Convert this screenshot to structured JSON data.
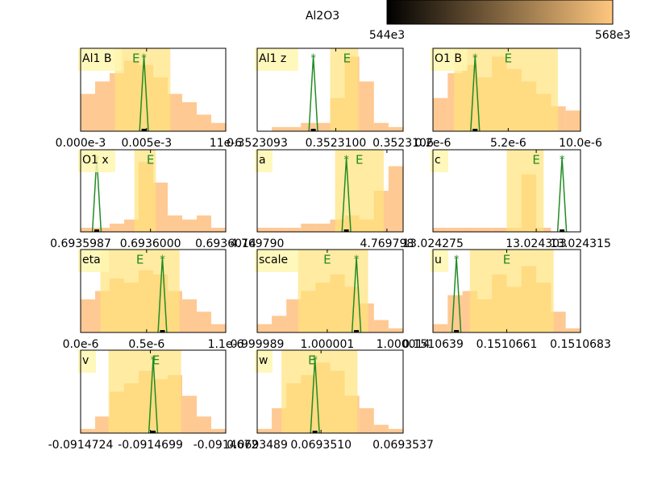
{
  "chart_data": [
    {
      "type": "colorbar",
      "title": "Al2O3",
      "colors": [
        "#000000",
        "#ffc77f"
      ],
      "xlim": [
        544000,
        568000
      ],
      "xticks": [
        {
          "value": 544000,
          "label": "544e3"
        },
        {
          "value": 568000,
          "label": "568e3"
        }
      ]
    },
    {
      "type": "histogram",
      "title": "Al1 B",
      "color": "#ffbf80",
      "band_color": "#ffe27a",
      "line_color": "#228b22",
      "xlim": [
        0,
        1.1e-05
      ],
      "ylim": [
        0,
        20
      ],
      "xticks": [
        {
          "value": 0,
          "label": "0.000e-3"
        },
        {
          "value": 5e-06,
          "label": "0.005e-3"
        },
        {
          "value": 1.1e-05,
          "label": "11e-6"
        }
      ],
      "bins": [
        0,
        1.1e-06,
        2.2e-06,
        3.3e-06,
        4.4e-06,
        5.5e-06,
        6.6e-06,
        7.7e-06,
        8.8e-06,
        9.9e-06,
        1.1e-05
      ],
      "values": [
        9,
        12,
        14,
        17,
        16,
        13,
        9,
        7,
        4,
        2
      ],
      "band": [
        2.6e-06,
        6.8e-06
      ],
      "markers": [
        {
          "label": "*",
          "value": 4.8e-06
        },
        {
          "label": "E",
          "value": 4.2e-06
        }
      ]
    },
    {
      "type": "histogram",
      "title": "Al1 z",
      "color": "#ffbf80",
      "band_color": "#ffe27a",
      "line_color": "#228b22",
      "xlim": [
        0.3523093,
        0.3523106
      ],
      "ylim": [
        0,
        20
      ],
      "xticks": [
        0.3523093,
        {
          "value": 0.35231,
          "label": "0.3523100"
        },
        0.3523106
      ],
      "bins": [
        0.3523093,
        0.35230943,
        0.35230956,
        0.35230969,
        0.35230982,
        0.35230995,
        0.35231008,
        0.35231021,
        0.35231034,
        0.35231047,
        0.3523106
      ],
      "values": [
        0,
        1,
        1,
        2,
        2,
        8,
        18,
        12,
        2,
        1
      ],
      "band": [
        0.35230995,
        0.3523102
      ],
      "markers": [
        {
          "label": "*",
          "value": 0.3523098
        },
        {
          "label": "E",
          "value": 0.3523101
        }
      ]
    },
    {
      "type": "histogram",
      "title": "O1 B",
      "color": "#ffbf80",
      "band_color": "#ffe27a",
      "line_color": "#228b22",
      "xlim": [
        2e-07,
        1e-05
      ],
      "ylim": [
        0,
        20
      ],
      "xticks": [
        {
          "value": 2e-07,
          "label": "0.2e-6"
        },
        {
          "value": 5.2e-06,
          "label": "5.2e-6"
        },
        {
          "value": 1e-05,
          "label": "10.0e-6"
        }
      ],
      "bins": [
        2e-07,
        1.18e-06,
        2.16e-06,
        3.14e-06,
        4.12e-06,
        5.1e-06,
        6.08e-06,
        7.06e-06,
        8.04e-06,
        9.02e-06,
        1e-05
      ],
      "values": [
        8,
        14,
        16,
        13,
        18,
        15,
        12,
        9,
        6,
        5
      ],
      "band": [
        1.6e-06,
        8.5e-06
      ],
      "markers": [
        {
          "label": "*",
          "value": 3e-06
        },
        {
          "label": "E",
          "value": 5.2e-06
        }
      ]
    },
    {
      "type": "histogram",
      "title": "O1 x",
      "color": "#ffbf80",
      "band_color": "#ffe27a",
      "line_color": "#228b22",
      "xlim": [
        0.6935987,
        0.6936014
      ],
      "ylim": [
        0,
        20
      ],
      "xticks": [
        0.6935987,
        {
          "value": 0.6936,
          "label": "0.6936000"
        },
        0.6936014
      ],
      "bins": [
        0.6935987,
        0.69359897,
        0.69359924,
        0.69359951,
        0.69359978,
        0.69360005,
        0.69360032,
        0.69360059,
        0.69360086,
        0.69360113,
        0.6936014
      ],
      "values": [
        1,
        1,
        2,
        3,
        17,
        12,
        4,
        3,
        4,
        1
      ],
      "band": [
        0.6935997,
        0.6936001
      ],
      "markers": [
        {
          "label": "*",
          "value": 0.693599
        },
        {
          "label": "E",
          "value": 0.6936
        }
      ]
    },
    {
      "type": "histogram",
      "title": "a",
      "color": "#ffbf80",
      "band_color": "#ffe27a",
      "line_color": "#228b22",
      "xlim": [
        4.76979,
        4.769799
      ],
      "ylim": [
        0,
        20
      ],
      "xticks": [
        {
          "value": 4.76979,
          "label": "4.769790"
        },
        4.769798
      ],
      "bins": [
        4.76979,
        4.7697909,
        4.7697918,
        4.7697927,
        4.7697936,
        4.7697945,
        4.7697954,
        4.7697963,
        4.7697972,
        4.7697981,
        4.769799
      ],
      "values": [
        1,
        1,
        1,
        2,
        2,
        3,
        4,
        3,
        10,
        16
      ],
      "band": [
        4.7697948,
        4.7697978
      ],
      "markers": [
        {
          "label": "*",
          "value": 4.7697955
        },
        {
          "label": "E",
          "value": 4.7697963
        }
      ]
    },
    {
      "type": "histogram",
      "title": "c",
      "color": "#ffbf80",
      "band_color": "#ffe27a",
      "line_color": "#228b22",
      "xlim": [
        13.024275,
        13.024315
      ],
      "ylim": [
        0,
        20
      ],
      "xticks": [
        13.024275,
        13.024303,
        13.024315
      ],
      "bins": [
        13.024275,
        13.024279,
        13.024283,
        13.024287,
        13.024291,
        13.024295,
        13.024299,
        13.024303,
        13.024307,
        13.024311,
        13.024315
      ],
      "values": [
        1,
        1,
        1,
        1,
        1,
        1,
        14,
        1,
        0,
        0
      ],
      "band": [
        13.024295,
        13.024305
      ],
      "markers": [
        {
          "label": "*",
          "value": 13.02431
        },
        {
          "label": "E",
          "value": 13.024303
        }
      ]
    },
    {
      "type": "histogram",
      "title": "eta",
      "color": "#ffbf80",
      "band_color": "#ffe27a",
      "line_color": "#228b22",
      "xlim": [
        0,
        1.1e-06
      ],
      "ylim": [
        0,
        20
      ],
      "xticks": [
        {
          "value": 0,
          "label": "0.0e-6"
        },
        {
          "value": 5e-07,
          "label": "0.5e-6"
        },
        {
          "value": 1.1e-06,
          "label": "1.1e-6"
        }
      ],
      "bins": [
        0,
        1.1e-07,
        2.2e-07,
        3.3e-07,
        4.4e-07,
        5.5e-07,
        6.6e-07,
        7.7e-07,
        8.8e-07,
        9.9e-07,
        1.1e-06
      ],
      "values": [
        8,
        10,
        13,
        12,
        15,
        14,
        10,
        8,
        5,
        2
      ],
      "band": [
        1.5e-07,
        7.5e-07
      ],
      "markers": [
        {
          "label": "*",
          "value": 6.2e-07
        },
        {
          "label": "E",
          "value": 4.5e-07
        }
      ]
    },
    {
      "type": "histogram",
      "title": "scale",
      "color": "#ffbf80",
      "band_color": "#ffe27a",
      "line_color": "#228b22",
      "xlim": [
        0.999989,
        1.000014
      ],
      "ylim": [
        0,
        20
      ],
      "xticks": [
        0.999989,
        1.000001,
        1.000014
      ],
      "bins": [
        0.999989,
        0.9999915,
        0.999994,
        0.9999965,
        0.999999,
        1.0000015,
        1.000004,
        1.0000065,
        1.000009,
        1.0000115,
        1.000014
      ],
      "values": [
        2,
        4,
        8,
        10,
        12,
        14,
        11,
        7,
        3,
        1
      ],
      "band": [
        0.999996,
        1.000008
      ],
      "markers": [
        {
          "label": "*",
          "value": 1.000006
        },
        {
          "label": "E",
          "value": 1.000001
        }
      ]
    },
    {
      "type": "histogram",
      "title": "u",
      "color": "#ffbf80",
      "band_color": "#ffe27a",
      "line_color": "#228b22",
      "xlim": [
        0.1510639,
        0.1510683
      ],
      "ylim": [
        0,
        20
      ],
      "xticks": [
        0.1510639,
        0.1510661,
        0.1510683
      ],
      "bins": [
        0.1510639,
        0.15106434,
        0.15106478,
        0.15106522,
        0.15106566,
        0.1510661,
        0.15106654,
        0.15106698,
        0.15106742,
        0.15106786,
        0.1510683
      ],
      "values": [
        2,
        9,
        10,
        8,
        14,
        11,
        16,
        12,
        5,
        1
      ],
      "band": [
        0.151065,
        0.1510675
      ],
      "markers": [
        {
          "label": "*",
          "value": 0.1510646
        },
        {
          "label": "E",
          "value": 0.1510661
        }
      ]
    },
    {
      "type": "histogram",
      "title": "v",
      "color": "#ffbf80",
      "band_color": "#ffe27a",
      "line_color": "#228b22",
      "xlim": [
        -0.0914724,
        -0.0914672
      ],
      "ylim": [
        0,
        20
      ],
      "xticks": [
        -0.0914724,
        -0.0914699,
        -0.0914672
      ],
      "bins": [
        -0.0914724,
        -0.09147188,
        -0.09147136,
        -0.09147084,
        -0.09147032,
        -0.0914698,
        -0.09146928,
        -0.09146876,
        -0.09146824,
        -0.09146772,
        -0.0914672
      ],
      "values": [
        1,
        4,
        10,
        12,
        15,
        13,
        14,
        9,
        4,
        1
      ],
      "band": [
        -0.0914714,
        -0.0914688
      ],
      "markers": [
        {
          "label": "*",
          "value": -0.0914698
        },
        {
          "label": "E",
          "value": -0.0914697
        }
      ]
    },
    {
      "type": "histogram",
      "title": "w",
      "color": "#ffbf80",
      "band_color": "#ffe27a",
      "line_color": "#228b22",
      "xlim": [
        0.0693489,
        0.0693537
      ],
      "ylim": [
        0,
        20
      ],
      "xticks": [
        0.0693489,
        {
          "value": 0.069351,
          "label": "0.0693510"
        },
        0.0693537
      ],
      "bins": [
        0.0693489,
        0.06934938,
        0.06934986,
        0.06935034,
        0.06935082,
        0.0693513,
        0.06935178,
        0.06935226,
        0.06935274,
        0.06935322,
        0.0693537
      ],
      "values": [
        1,
        6,
        12,
        14,
        17,
        15,
        9,
        6,
        2,
        1
      ],
      "band": [
        0.0693497,
        0.0693522
      ],
      "markers": [
        {
          "label": "*",
          "value": 0.0693508
        },
        {
          "label": "E",
          "value": 0.0693507
        }
      ]
    }
  ]
}
